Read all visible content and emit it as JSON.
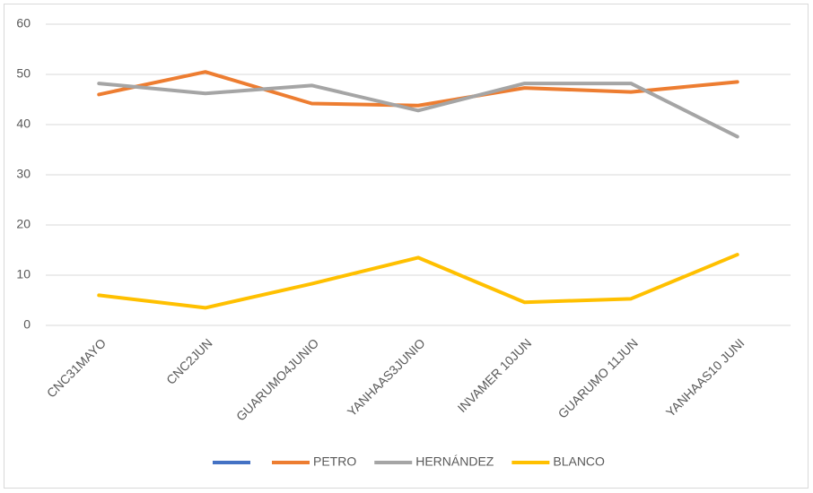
{
  "chart_data": {
    "type": "line",
    "categories": [
      "CNC31MAYO",
      "CNC2JUN",
      "GUARUMO4JUNIO",
      "YANHAAS3JUNIO",
      "INVAMER 10JUN",
      "GUARUMO 11JUN",
      "YANHAAS10 JUNI"
    ],
    "series": [
      {
        "color": "#4472c4",
        "values": [
          null,
          null,
          null,
          null,
          null,
          null,
          null
        ]
      },
      {
        "name": "PETRO",
        "color": "#ed7d31",
        "values": [
          46,
          50.5,
          44.2,
          43.8,
          47.3,
          46.5,
          48.5
        ]
      },
      {
        "name": "HERNÁNDEZ",
        "color": "#a5a5a5",
        "values": [
          48.2,
          46.2,
          47.8,
          42.8,
          48.2,
          48.2,
          37.6
        ]
      },
      {
        "name": "BLANCO",
        "color": "#ffc000",
        "values": [
          6,
          3.5,
          8.3,
          13.5,
          4.6,
          5.3,
          14.1
        ]
      }
    ],
    "ylim": [
      0,
      60
    ],
    "yticks": [
      0,
      10,
      20,
      30,
      40,
      50,
      60
    ],
    "grid": true,
    "legend": "bottom"
  }
}
